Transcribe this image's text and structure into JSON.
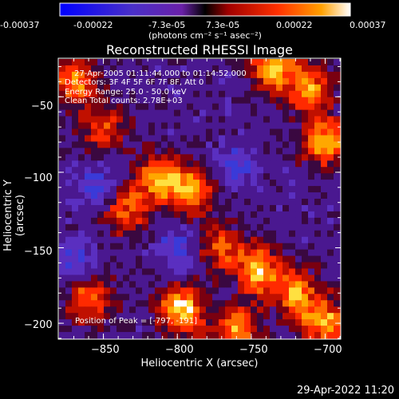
{
  "colorbar": {
    "tick_labels": [
      "-0.00037",
      "-0.00022",
      "-7.3e-05",
      "7.3e-05",
      "0.00022",
      "0.00037"
    ],
    "unit_label": "(photons cm⁻² s⁻¹ asec⁻²)",
    "range": [
      -0.00037,
      0.00037
    ]
  },
  "chart_data": {
    "type": "heatmap",
    "title": "Reconstructed RHESSI Image",
    "xlabel": "Heliocentric X (arcsec)",
    "ylabel": "Heliocentric Y (arcsec)",
    "xlim": [
      -880,
      -690
    ],
    "ylim": [
      -210,
      -25
    ],
    "x_ticks": [
      -850,
      -800,
      -750,
      -700
    ],
    "y_ticks": [
      -50,
      -100,
      -150,
      -200
    ],
    "x_tick_labels": [
      "−850",
      "−800",
      "−750",
      "−700"
    ],
    "y_tick_labels": [
      "−50",
      "−100",
      "−150",
      "−200"
    ],
    "colormap": [
      "#0000ff",
      "#3c1a8c",
      "#6a2fb5",
      "#5a14a0",
      "#8c1a30",
      "#ff2000",
      "#ff8000",
      "#ffe000",
      "#ffffff"
    ],
    "grid": false,
    "peaks": [
      {
        "x": -797,
        "y": -191,
        "level": 1.0
      },
      {
        "x": -812,
        "y": -104,
        "level": 0.85
      },
      {
        "x": -790,
        "y": -112,
        "level": 0.7
      },
      {
        "x": -735,
        "y": -30,
        "level": 0.95
      },
      {
        "x": -710,
        "y": -45,
        "level": 0.75
      },
      {
        "x": -700,
        "y": -80,
        "level": 0.9
      },
      {
        "x": -770,
        "y": -150,
        "level": 0.6
      },
      {
        "x": -745,
        "y": -165,
        "level": 0.85
      },
      {
        "x": -720,
        "y": -180,
        "level": 0.8
      },
      {
        "x": -860,
        "y": -185,
        "level": 0.7
      },
      {
        "x": -835,
        "y": -125,
        "level": 0.65
      },
      {
        "x": -870,
        "y": -40,
        "level": 0.75
      },
      {
        "x": -850,
        "y": -70,
        "level": 0.6
      },
      {
        "x": -760,
        "y": -205,
        "level": 0.8
      },
      {
        "x": -700,
        "y": -200,
        "level": 0.85
      }
    ],
    "cold_spots": [
      {
        "x": -855,
        "y": -110
      },
      {
        "x": -870,
        "y": -160
      },
      {
        "x": -760,
        "y": -95
      },
      {
        "x": -800,
        "y": -150
      }
    ]
  },
  "annotations": {
    "time_range": "27-Apr-2005 01:11:44.000 to 01:14:52.000",
    "detectors": "Detectors: 3F 4F 5F 6F 7F 8F, Att 0",
    "energy": "Energy Range: 25.0 - 50.0 keV",
    "algorithm": "Clean     Total counts: 2.78E+03",
    "peak_position": "Position of Peak = [-797, -191]"
  },
  "footer_date": "29-Apr-2022 11:20"
}
